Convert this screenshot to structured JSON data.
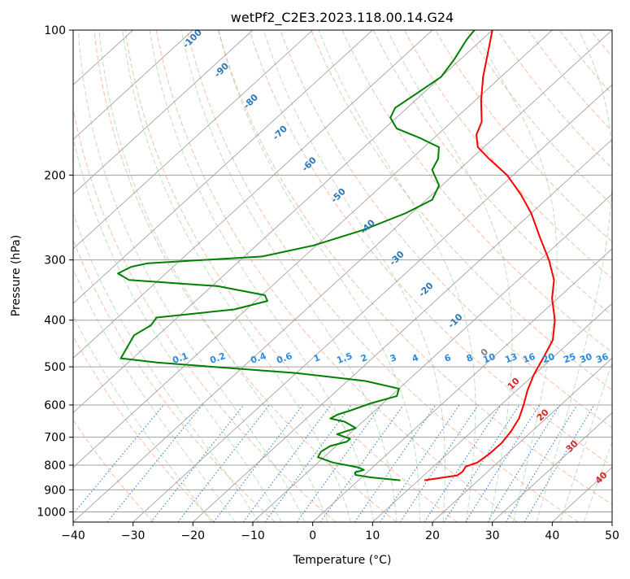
{
  "chart_data": {
    "type": "line",
    "subtype": "skew-T log-p diagram",
    "title": "wetPf2_C2E3.2023.118.00.14.G24",
    "xlabel": "Temperature (°C)",
    "ylabel": "Pressure (hPa)",
    "xlim": [
      -40,
      50
    ],
    "ylim": [
      1050,
      100
    ],
    "y_scale": "log",
    "grid": true,
    "x_ticks": [
      -40,
      -30,
      -20,
      -10,
      0,
      10,
      20,
      30,
      40,
      50
    ],
    "y_ticks": [
      100,
      200,
      300,
      400,
      500,
      600,
      700,
      800,
      900,
      1000
    ],
    "isotherm_labels": [
      -100,
      -90,
      -80,
      -70,
      -60,
      -50,
      -40,
      -30,
      -20,
      -10,
      0,
      10,
      20,
      30,
      40
    ],
    "mixing_ratio_labels": [
      "0.1",
      "0.2",
      "0.4",
      "0.6",
      "1",
      "1.5",
      "2",
      "3",
      "4",
      "6",
      "8",
      "10",
      "13",
      "16",
      "20",
      "25",
      "30",
      "36"
    ],
    "series": [
      {
        "color": "#ff0000",
        "points": [
          {
            "p": 860,
            "t": 11.0
          },
          {
            "p": 840,
            "t": 15.6
          },
          {
            "p": 825,
            "t": 15.8
          },
          {
            "p": 805,
            "t": 15.4
          },
          {
            "p": 790,
            "t": 16.6
          },
          {
            "p": 760,
            "t": 17.0
          },
          {
            "p": 720,
            "t": 17.1
          },
          {
            "p": 680,
            "t": 16.5
          },
          {
            "p": 640,
            "t": 15.5
          },
          {
            "p": 600,
            "t": 13.8
          },
          {
            "p": 560,
            "t": 11.8
          },
          {
            "p": 520,
            "t": 10.0
          },
          {
            "p": 480,
            "t": 8.5
          },
          {
            "p": 440,
            "t": 6.8
          },
          {
            "p": 400,
            "t": 3.5
          },
          {
            "p": 360,
            "t": -1.0
          },
          {
            "p": 330,
            "t": -4.0
          },
          {
            "p": 300,
            "t": -8.5
          },
          {
            "p": 270,
            "t": -14.0
          },
          {
            "p": 240,
            "t": -20.0
          },
          {
            "p": 220,
            "t": -25.0
          },
          {
            "p": 200,
            "t": -31.0
          },
          {
            "p": 185,
            "t": -37.0
          },
          {
            "p": 175,
            "t": -41.0
          },
          {
            "p": 165,
            "t": -43.5
          },
          {
            "p": 155,
            "t": -45.0
          },
          {
            "p": 140,
            "t": -49.0
          },
          {
            "p": 125,
            "t": -53.0
          },
          {
            "p": 110,
            "t": -57.0
          },
          {
            "p": 100,
            "t": -60.0
          }
        ]
      },
      {
        "color": "#008000",
        "points": [
          {
            "p": 860,
            "t": 7.0
          },
          {
            "p": 848,
            "t": 1.5
          },
          {
            "p": 838,
            "t": -1.5
          },
          {
            "p": 828,
            "t": -2.0
          },
          {
            "p": 818,
            "t": -1.0
          },
          {
            "p": 808,
            "t": -2.5
          },
          {
            "p": 790,
            "t": -7.5
          },
          {
            "p": 770,
            "t": -11.0
          },
          {
            "p": 750,
            "t": -11.5
          },
          {
            "p": 730,
            "t": -11.0
          },
          {
            "p": 715,
            "t": -9.0
          },
          {
            "p": 705,
            "t": -9.0
          },
          {
            "p": 690,
            "t": -12.0
          },
          {
            "p": 670,
            "t": -10.0
          },
          {
            "p": 650,
            "t": -13.0
          },
          {
            "p": 640,
            "t": -16.0
          },
          {
            "p": 628,
            "t": -15.5
          },
          {
            "p": 615,
            "t": -14.0
          },
          {
            "p": 595,
            "t": -12.0
          },
          {
            "p": 575,
            "t": -9.0
          },
          {
            "p": 555,
            "t": -10.0
          },
          {
            "p": 535,
            "t": -17.0
          },
          {
            "p": 515,
            "t": -30.0
          },
          {
            "p": 500,
            "t": -45.0
          },
          {
            "p": 490,
            "t": -55.0
          },
          {
            "p": 480,
            "t": -62.0
          },
          {
            "p": 430,
            "t": -64.0
          },
          {
            "p": 410,
            "t": -63.0
          },
          {
            "p": 395,
            "t": -63.5
          },
          {
            "p": 380,
            "t": -52.0
          },
          {
            "p": 365,
            "t": -48.0
          },
          {
            "p": 355,
            "t": -49.5
          },
          {
            "p": 340,
            "t": -59.0
          },
          {
            "p": 330,
            "t": -75.0
          },
          {
            "p": 320,
            "t": -78.0
          },
          {
            "p": 310,
            "t": -77.0
          },
          {
            "p": 305,
            "t": -75.0
          },
          {
            "p": 295,
            "t": -57.0
          },
          {
            "p": 280,
            "t": -50.5
          },
          {
            "p": 260,
            "t": -45.0
          },
          {
            "p": 240,
            "t": -41.0
          },
          {
            "p": 225,
            "t": -39.0
          },
          {
            "p": 210,
            "t": -40.5
          },
          {
            "p": 195,
            "t": -44.5
          },
          {
            "p": 185,
            "t": -45.5
          },
          {
            "p": 175,
            "t": -47.5
          },
          {
            "p": 168,
            "t": -52.0
          },
          {
            "p": 160,
            "t": -58.0
          },
          {
            "p": 152,
            "t": -61.0
          },
          {
            "p": 145,
            "t": -62.0
          },
          {
            "p": 135,
            "t": -61.0
          },
          {
            "p": 125,
            "t": -60.0
          },
          {
            "p": 115,
            "t": -61.0
          },
          {
            "p": 105,
            "t": -62.5
          },
          {
            "p": 100,
            "t": -63.0
          }
        ]
      }
    ]
  }
}
